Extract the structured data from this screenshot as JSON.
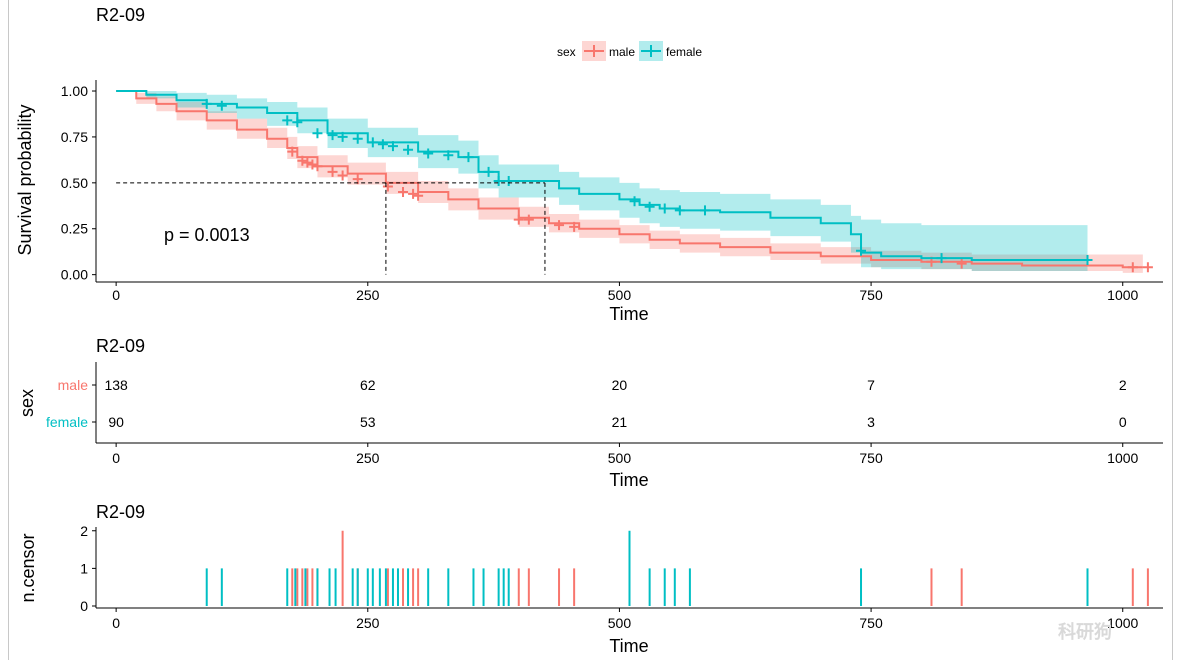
{
  "colors": {
    "male": "#F8766D",
    "female": "#00BFC4",
    "male_band": "#F8766D",
    "female_band": "#00BFC4"
  },
  "legend": {
    "title": "sex",
    "male_label": "male",
    "female_label": "female"
  },
  "pvalue": "p = 0.0013",
  "chart_data": [
    {
      "type": "line",
      "chart": "survival",
      "title": "R2-09",
      "xlabel": "Time",
      "ylabel": "Survival probability",
      "xlim": [
        -20,
        1040
      ],
      "ylim": [
        -0.04,
        1.06
      ],
      "xticks": [
        0,
        250,
        500,
        750,
        1000
      ],
      "yticks": [
        0,
        0.25,
        0.5,
        0.75,
        1.0
      ],
      "ytick_labels": [
        "0.00",
        "0.25",
        "0.50",
        "0.75",
        "1.00"
      ],
      "median_survival": {
        "male": 268,
        "female": 426
      },
      "series": [
        {
          "name": "male",
          "x": [
            0,
            20,
            40,
            60,
            90,
            120,
            150,
            170,
            180,
            200,
            230,
            268,
            300,
            330,
            360,
            400,
            430,
            460,
            500,
            530,
            560,
            600,
            650,
            700,
            750,
            800,
            850,
            900,
            950,
            1000,
            1020
          ],
          "y": [
            1.0,
            0.96,
            0.93,
            0.89,
            0.84,
            0.79,
            0.74,
            0.69,
            0.64,
            0.59,
            0.55,
            0.5,
            0.45,
            0.41,
            0.36,
            0.31,
            0.28,
            0.25,
            0.22,
            0.19,
            0.17,
            0.15,
            0.12,
            0.1,
            0.08,
            0.07,
            0.06,
            0.05,
            0.05,
            0.04,
            0.04
          ],
          "lower": [
            1.0,
            0.93,
            0.89,
            0.84,
            0.79,
            0.74,
            0.69,
            0.63,
            0.58,
            0.53,
            0.49,
            0.44,
            0.39,
            0.35,
            0.3,
            0.26,
            0.23,
            0.2,
            0.17,
            0.14,
            0.12,
            0.1,
            0.08,
            0.06,
            0.04,
            0.03,
            0.02,
            0.02,
            0.02,
            0.01,
            0.01
          ],
          "upper": [
            1.0,
            0.99,
            0.97,
            0.94,
            0.89,
            0.85,
            0.8,
            0.75,
            0.7,
            0.65,
            0.61,
            0.56,
            0.51,
            0.47,
            0.42,
            0.37,
            0.33,
            0.3,
            0.27,
            0.24,
            0.22,
            0.2,
            0.17,
            0.15,
            0.13,
            0.12,
            0.11,
            0.11,
            0.11,
            0.11,
            0.11
          ],
          "censor_x": [
            175,
            185,
            190,
            195,
            200,
            215,
            225,
            240,
            270,
            285,
            295,
            300,
            400,
            410,
            440,
            455,
            810,
            840,
            1010,
            1025
          ],
          "censor_y": [
            0.67,
            0.62,
            0.61,
            0.6,
            0.59,
            0.56,
            0.54,
            0.52,
            0.48,
            0.45,
            0.44,
            0.43,
            0.3,
            0.3,
            0.27,
            0.26,
            0.07,
            0.06,
            0.04,
            0.04
          ]
        },
        {
          "name": "female",
          "x": [
            0,
            30,
            60,
            90,
            120,
            150,
            180,
            210,
            250,
            300,
            340,
            360,
            380,
            426,
            440,
            460,
            500,
            520,
            540,
            560,
            600,
            650,
            700,
            730,
            740,
            760,
            800,
            850,
            900,
            965
          ],
          "y": [
            1.0,
            0.98,
            0.95,
            0.93,
            0.91,
            0.88,
            0.84,
            0.77,
            0.72,
            0.67,
            0.64,
            0.56,
            0.51,
            0.51,
            0.47,
            0.44,
            0.41,
            0.38,
            0.36,
            0.35,
            0.34,
            0.31,
            0.28,
            0.22,
            0.12,
            0.1,
            0.09,
            0.08,
            0.08,
            0.08
          ],
          "lower": [
            1.0,
            0.96,
            0.91,
            0.88,
            0.85,
            0.81,
            0.77,
            0.69,
            0.64,
            0.58,
            0.55,
            0.47,
            0.42,
            0.42,
            0.38,
            0.35,
            0.31,
            0.28,
            0.26,
            0.25,
            0.24,
            0.21,
            0.18,
            0.12,
            0.04,
            0.03,
            0.03,
            0.02,
            0.02,
            0.02
          ],
          "upper": [
            1.0,
            1.0,
            0.99,
            0.98,
            0.96,
            0.94,
            0.91,
            0.85,
            0.8,
            0.76,
            0.73,
            0.65,
            0.6,
            0.6,
            0.56,
            0.53,
            0.5,
            0.47,
            0.46,
            0.45,
            0.44,
            0.41,
            0.38,
            0.32,
            0.3,
            0.28,
            0.27,
            0.27,
            0.27,
            0.27
          ],
          "censor_x": [
            90,
            105,
            170,
            180,
            200,
            215,
            225,
            240,
            255,
            265,
            275,
            290,
            310,
            330,
            350,
            370,
            380,
            390,
            515,
            530,
            545,
            560,
            585,
            740,
            820,
            965
          ],
          "censor_y": [
            0.93,
            0.92,
            0.84,
            0.83,
            0.77,
            0.76,
            0.75,
            0.74,
            0.72,
            0.71,
            0.7,
            0.68,
            0.66,
            0.65,
            0.64,
            0.56,
            0.51,
            0.51,
            0.4,
            0.37,
            0.36,
            0.35,
            0.35,
            0.13,
            0.09,
            0.08
          ]
        }
      ]
    },
    {
      "type": "table",
      "chart": "risk_table",
      "title": "R2-09",
      "xlabel": "Time",
      "ylabel": "sex",
      "xlim": [
        -20,
        1040
      ],
      "xticks": [
        0,
        250,
        500,
        750,
        1000
      ],
      "rows": [
        {
          "name": "male",
          "values": [
            "138",
            "62",
            "20",
            "7",
            "2"
          ]
        },
        {
          "name": "female",
          "values": [
            "90",
            "53",
            "21",
            "3",
            "0"
          ]
        }
      ]
    },
    {
      "type": "bar",
      "chart": "n_censor",
      "title": "R2-09",
      "xlabel": "Time",
      "ylabel": "n.censor",
      "xlim": [
        -20,
        1040
      ],
      "ylim": [
        0,
        2.1
      ],
      "xticks": [
        0,
        250,
        500,
        750,
        1000
      ],
      "yticks": [
        0,
        1,
        2
      ],
      "series": [
        {
          "name": "male",
          "x": [
            175,
            180,
            185,
            190,
            195,
            200,
            225,
            240,
            270,
            285,
            295,
            300,
            400,
            410,
            440,
            455,
            810,
            840,
            1010,
            1025
          ],
          "values": [
            1,
            1,
            1,
            1,
            1,
            1,
            2,
            1,
            1,
            1,
            1,
            1,
            1,
            1,
            1,
            1,
            1,
            1,
            1,
            1
          ]
        },
        {
          "name": "female",
          "x": [
            90,
            105,
            170,
            178,
            188,
            200,
            212,
            218,
            235,
            240,
            250,
            255,
            262,
            268,
            275,
            280,
            290,
            310,
            330,
            355,
            365,
            380,
            385,
            390,
            510,
            530,
            545,
            555,
            570,
            740,
            965
          ],
          "values": [
            1,
            1,
            1,
            1,
            1,
            1,
            1,
            1,
            1,
            1,
            1,
            1,
            1,
            1,
            1,
            1,
            1,
            1,
            1,
            1,
            1,
            1,
            1,
            1,
            2,
            1,
            1,
            1,
            1,
            1,
            1
          ]
        }
      ]
    }
  ],
  "watermark": "科研狗"
}
